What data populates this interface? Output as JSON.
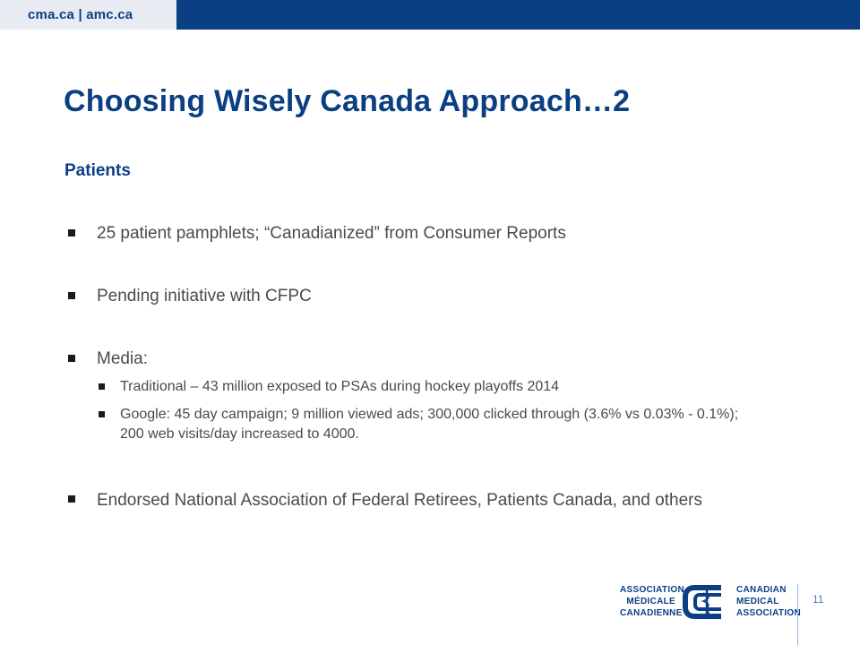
{
  "header": {
    "site_links": "cma.ca | amc.ca"
  },
  "slide": {
    "title": "Choosing Wisely Canada Approach…2",
    "subheading": "Patients",
    "bullets": [
      "25 patient pamphlets; “Canadianized” from Consumer Reports",
      "Pending initiative with CFPC",
      "Media:",
      "Endorsed National Association of Federal Retirees, Patients Canada, and others"
    ],
    "media_sub_bullets": [
      "Traditional – 43 million exposed to PSAs during hockey playoffs 2014",
      "Google: 45 day campaign; 9 million viewed ads; 300,000 clicked through (3.6% vs 0.03% - 0.1%); 200 web visits/day increased to 4000."
    ]
  },
  "footer": {
    "page_number": "11",
    "logo": {
      "fr_lines": [
        "ASSOCIATION",
        "MÉDICALE",
        "CANADIENNE"
      ],
      "en_lines": [
        "CANADIAN",
        "MEDICAL",
        "ASSOCIATION"
      ],
      "icon": "caduceus-c-emblem"
    }
  },
  "colors": {
    "brand_blue": "#0b3f83",
    "header_tab": "#e8ecf2",
    "body_text": "#4a4a4a"
  }
}
